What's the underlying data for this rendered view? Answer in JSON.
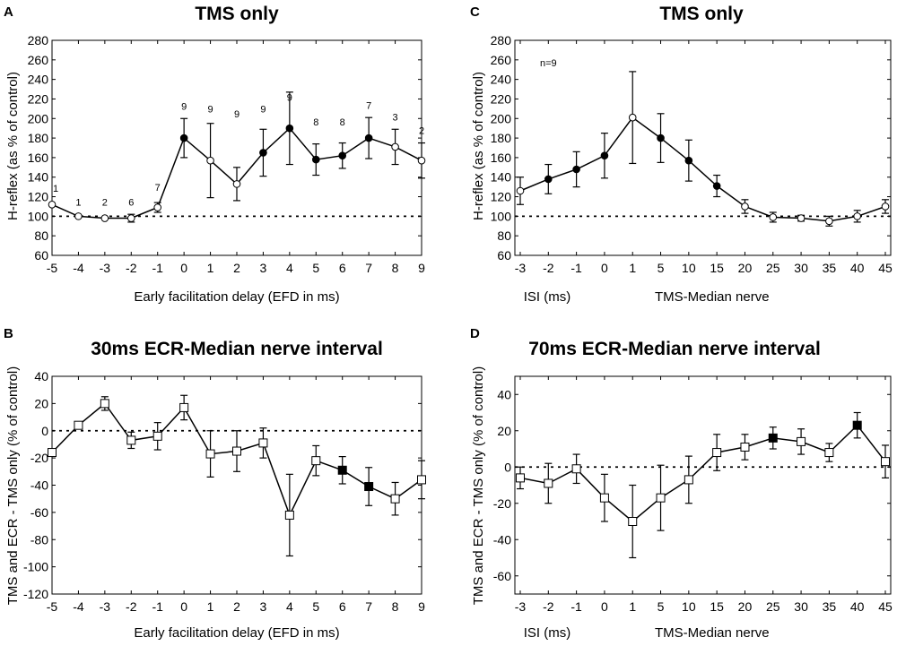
{
  "chart_data": [
    {
      "panel": "A",
      "type": "line",
      "title": "TMS only",
      "xlabel": "Early facilitation delay (EFD in ms)",
      "ylabel": "H-reflex (as % of control)",
      "x": [
        -5,
        -4,
        -3,
        -2,
        -1,
        0,
        1,
        2,
        3,
        4,
        5,
        6,
        7,
        8,
        9
      ],
      "xticks": [
        -5,
        -4,
        -3,
        -2,
        -1,
        0,
        1,
        2,
        3,
        4,
        5,
        6,
        7,
        8,
        9
      ],
      "xlim": [
        -5,
        9
      ],
      "ylim": [
        60,
        280
      ],
      "yticks": [
        60,
        80,
        100,
        120,
        140,
        160,
        180,
        200,
        220,
        240,
        260,
        280
      ],
      "reference_line": 100,
      "grid": false,
      "series": [
        {
          "name": "H-reflex",
          "values": [
            112,
            100,
            98,
            98,
            109,
            180,
            157,
            133,
            165,
            190,
            158,
            162,
            180,
            171,
            157
          ],
          "errors": [
            0,
            0,
            0,
            4,
            5,
            20,
            38,
            17,
            24,
            37,
            16,
            13,
            21,
            18,
            18
          ],
          "filled": [
            false,
            false,
            false,
            false,
            false,
            true,
            false,
            false,
            true,
            true,
            true,
            true,
            true,
            false,
            false
          ],
          "n_labels": [
            "1",
            "1",
            "2",
            "6",
            "7",
            "9",
            "9",
            "9",
            "9",
            "9",
            "8",
            "8",
            "7",
            "3",
            "2"
          ],
          "n_label_values": [
            125,
            111,
            111,
            111,
            126,
            209,
            206,
            201,
            206,
            218,
            193,
            193,
            210,
            198,
            184
          ]
        }
      ]
    },
    {
      "panel": "C",
      "type": "line",
      "title": "TMS only",
      "xlabel": "ISI (ms)",
      "xlabel2": "TMS-Median nerve",
      "ylabel": "H-reflex (as % of control)",
      "categories": [
        "-3",
        "-2",
        "-1",
        "0",
        "1",
        "5",
        "10",
        "15",
        "20",
        "25",
        "30",
        "35",
        "40",
        "45"
      ],
      "ylim": [
        60,
        280
      ],
      "yticks": [
        60,
        80,
        100,
        120,
        140,
        160,
        180,
        200,
        220,
        240,
        260,
        280
      ],
      "reference_line": 100,
      "annotation": "n=9",
      "grid": false,
      "series": [
        {
          "name": "H-reflex",
          "values": [
            126,
            138,
            148,
            162,
            201,
            180,
            157,
            131,
            110,
            99,
            98,
            95,
            100,
            110
          ],
          "errors": [
            14,
            15,
            18,
            23,
            47,
            25,
            21,
            11,
            7,
            5,
            3,
            5,
            6,
            7
          ],
          "filled": [
            false,
            true,
            true,
            true,
            false,
            true,
            true,
            true,
            false,
            false,
            false,
            false,
            false,
            false
          ]
        }
      ]
    },
    {
      "panel": "B",
      "type": "line",
      "title": "30ms ECR-Median nerve interval",
      "xlabel": "Early facilitation delay (EFD in ms)",
      "ylabel": "TMS and ECR - TMS only (% of control)",
      "x": [
        -5,
        -4,
        -3,
        -2,
        -1,
        0,
        1,
        2,
        3,
        4,
        5,
        6,
        7,
        8,
        9
      ],
      "xticks": [
        -5,
        -4,
        -3,
        -2,
        -1,
        0,
        1,
        2,
        3,
        4,
        5,
        6,
        7,
        8,
        9
      ],
      "xlim": [
        -5,
        9
      ],
      "ylim": [
        -120,
        40
      ],
      "yticks": [
        -120,
        -100,
        -80,
        -60,
        -40,
        -20,
        0,
        20,
        40
      ],
      "reference_line": 0,
      "grid": false,
      "series": [
        {
          "name": "Difference",
          "values": [
            -16,
            4,
            20,
            -7,
            -4,
            17,
            -17,
            -15,
            -9,
            -62,
            -22,
            -29,
            -41,
            -50,
            -36
          ],
          "errors": [
            0,
            0,
            5,
            6,
            10,
            9,
            17,
            15,
            11,
            30,
            11,
            10,
            14,
            12,
            14
          ],
          "filled": [
            false,
            false,
            false,
            false,
            false,
            false,
            false,
            false,
            false,
            false,
            false,
            true,
            true,
            false,
            false
          ]
        }
      ]
    },
    {
      "panel": "D",
      "type": "line",
      "title": "70ms ECR-Median nerve interval",
      "xlabel": "ISI (ms)",
      "xlabel2": "TMS-Median nerve",
      "ylabel": "TMS and ECR - TMS only (% of control)",
      "categories": [
        "-3",
        "-2",
        "-1",
        "0",
        "1",
        "5",
        "10",
        "15",
        "20",
        "25",
        "30",
        "35",
        "40",
        "45"
      ],
      "ylim": [
        -70,
        50
      ],
      "yticks": [
        -60,
        -40,
        -20,
        0,
        20,
        40
      ],
      "reference_line": 0,
      "grid": false,
      "series": [
        {
          "name": "Difference",
          "values": [
            -6,
            -9,
            -1,
            -17,
            -30,
            -17,
            -7,
            8,
            11,
            16,
            14,
            8,
            23,
            3
          ],
          "errors": [
            6,
            11,
            8,
            13,
            20,
            18,
            13,
            10,
            7,
            6,
            7,
            5,
            7,
            9
          ],
          "filled": [
            false,
            false,
            false,
            false,
            false,
            false,
            false,
            false,
            false,
            true,
            false,
            false,
            true,
            false
          ]
        }
      ]
    }
  ]
}
